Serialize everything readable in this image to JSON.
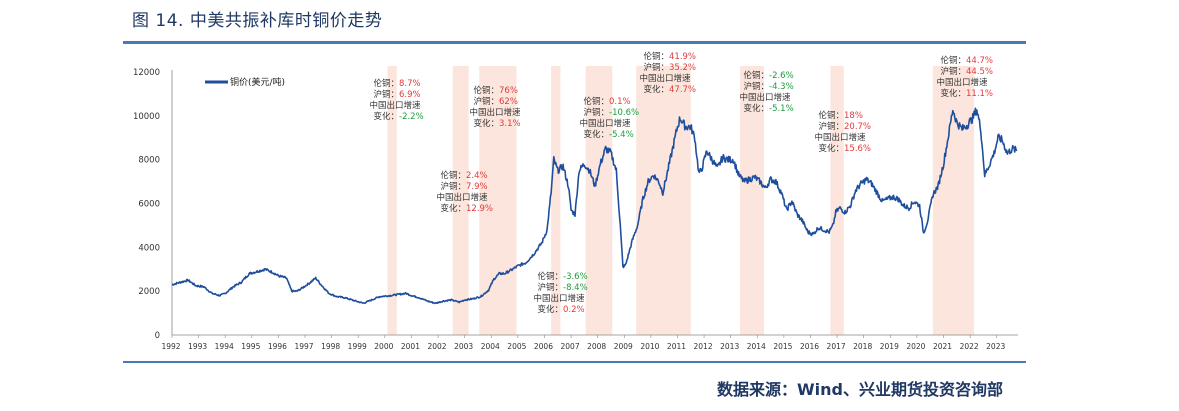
{
  "title": "图 14.  中美共振补库时铜价走势",
  "source": "数据来源：Wind、兴业期货投资咨询部",
  "colors": {
    "line": "#1f4e9c",
    "band": "#fbe5dc",
    "label": "#333333",
    "positive": "#e23a3a",
    "negative": "#1a9d3c",
    "axis": "#888888",
    "rule": "#4a7ab5"
  },
  "chart_data": {
    "type": "line",
    "title": "",
    "legend": "铜价(美元/吨)",
    "legend_position": "top-left",
    "xlabel": "",
    "ylabel": "",
    "xlim": [
      1992.0,
      2023.8
    ],
    "ylim": [
      0,
      12000
    ],
    "yticks": [
      "0",
      "2000",
      "4000",
      "6000",
      "8000",
      "10000",
      "12000"
    ],
    "xticks": [
      "1992",
      "1993",
      "1994",
      "1995",
      "1996",
      "1997",
      "1998",
      "1999",
      "2000",
      "2001",
      "2002",
      "2003",
      "2004",
      "2005",
      "2006",
      "2007",
      "2008",
      "2009",
      "2010",
      "2011",
      "2012",
      "2013",
      "2014",
      "2015",
      "2016",
      "2017",
      "2018",
      "2019",
      "2020",
      "2021",
      "2022",
      "2023"
    ],
    "grid": false,
    "series": [
      {
        "name": "铜价(美元/吨)",
        "points": [
          [
            1992.0,
            2300
          ],
          [
            1992.3,
            2400
          ],
          [
            1992.6,
            2500
          ],
          [
            1992.9,
            2250
          ],
          [
            1993.2,
            2200
          ],
          [
            1993.5,
            1900
          ],
          [
            1993.8,
            1800
          ],
          [
            1994.0,
            1900
          ],
          [
            1994.3,
            2200
          ],
          [
            1994.6,
            2400
          ],
          [
            1994.9,
            2800
          ],
          [
            1995.2,
            2900
          ],
          [
            1995.5,
            3000
          ],
          [
            1995.8,
            2850
          ],
          [
            1996.0,
            2700
          ],
          [
            1996.3,
            2600
          ],
          [
            1996.5,
            2000
          ],
          [
            1996.7,
            2000
          ],
          [
            1996.9,
            2150
          ],
          [
            1997.2,
            2400
          ],
          [
            1997.4,
            2600
          ],
          [
            1997.6,
            2300
          ],
          [
            1997.9,
            1900
          ],
          [
            1998.2,
            1750
          ],
          [
            1998.5,
            1700
          ],
          [
            1998.9,
            1550
          ],
          [
            1999.2,
            1450
          ],
          [
            1999.5,
            1600
          ],
          [
            1999.8,
            1750
          ],
          [
            2000.2,
            1800
          ],
          [
            2000.5,
            1850
          ],
          [
            2000.8,
            1900
          ],
          [
            2001.0,
            1800
          ],
          [
            2001.3,
            1700
          ],
          [
            2001.6,
            1550
          ],
          [
            2001.9,
            1450
          ],
          [
            2002.2,
            1550
          ],
          [
            2002.5,
            1600
          ],
          [
            2002.8,
            1500
          ],
          [
            2003.0,
            1600
          ],
          [
            2003.3,
            1650
          ],
          [
            2003.6,
            1750
          ],
          [
            2003.9,
            2050
          ],
          [
            2004.1,
            2550
          ],
          [
            2004.3,
            2800
          ],
          [
            2004.5,
            2800
          ],
          [
            2004.8,
            3000
          ],
          [
            2005.0,
            3150
          ],
          [
            2005.3,
            3300
          ],
          [
            2005.6,
            3700
          ],
          [
            2005.9,
            4200
          ],
          [
            2006.1,
            4800
          ],
          [
            2006.25,
            6500
          ],
          [
            2006.35,
            8000
          ],
          [
            2006.5,
            7500
          ],
          [
            2006.7,
            7700
          ],
          [
            2006.9,
            6800
          ],
          [
            2007.0,
            5700
          ],
          [
            2007.15,
            5500
          ],
          [
            2007.3,
            7500
          ],
          [
            2007.5,
            7800
          ],
          [
            2007.7,
            7500
          ],
          [
            2007.9,
            6800
          ],
          [
            2008.1,
            7800
          ],
          [
            2008.3,
            8500
          ],
          [
            2008.5,
            8300
          ],
          [
            2008.7,
            7500
          ],
          [
            2008.85,
            5000
          ],
          [
            2008.95,
            3100
          ],
          [
            2009.05,
            3200
          ],
          [
            2009.3,
            4300
          ],
          [
            2009.5,
            5000
          ],
          [
            2009.7,
            6200
          ],
          [
            2009.9,
            7000
          ],
          [
            2010.1,
            7300
          ],
          [
            2010.3,
            7000
          ],
          [
            2010.45,
            6500
          ],
          [
            2010.6,
            7300
          ],
          [
            2010.8,
            8400
          ],
          [
            2011.0,
            9500
          ],
          [
            2011.1,
            9900
          ],
          [
            2011.3,
            9500
          ],
          [
            2011.5,
            9500
          ],
          [
            2011.65,
            9000
          ],
          [
            2011.8,
            7400
          ],
          [
            2011.9,
            7500
          ],
          [
            2012.1,
            8400
          ],
          [
            2012.3,
            8000
          ],
          [
            2012.5,
            7600
          ],
          [
            2012.7,
            8100
          ],
          [
            2012.9,
            8000
          ],
          [
            2013.1,
            8000
          ],
          [
            2013.3,
            7300
          ],
          [
            2013.5,
            7000
          ],
          [
            2013.7,
            7100
          ],
          [
            2013.9,
            7200
          ],
          [
            2014.1,
            7000
          ],
          [
            2014.3,
            6700
          ],
          [
            2014.5,
            7100
          ],
          [
            2014.7,
            7000
          ],
          [
            2014.9,
            6500
          ],
          [
            2015.1,
            5700
          ],
          [
            2015.3,
            6100
          ],
          [
            2015.5,
            5500
          ],
          [
            2015.7,
            5200
          ],
          [
            2015.9,
            4700
          ],
          [
            2016.1,
            4600
          ],
          [
            2016.3,
            4900
          ],
          [
            2016.5,
            4800
          ],
          [
            2016.7,
            4700
          ],
          [
            2016.85,
            5000
          ],
          [
            2016.95,
            5600
          ],
          [
            2017.1,
            5800
          ],
          [
            2017.3,
            5600
          ],
          [
            2017.5,
            5900
          ],
          [
            2017.7,
            6600
          ],
          [
            2017.9,
            6900
          ],
          [
            2018.1,
            7100
          ],
          [
            2018.3,
            6900
          ],
          [
            2018.5,
            6500
          ],
          [
            2018.7,
            6100
          ],
          [
            2018.9,
            6200
          ],
          [
            2019.1,
            6300
          ],
          [
            2019.3,
            6200
          ],
          [
            2019.5,
            5900
          ],
          [
            2019.7,
            5800
          ],
          [
            2019.9,
            6100
          ],
          [
            2020.1,
            5900
          ],
          [
            2020.25,
            4650
          ],
          [
            2020.4,
            5200
          ],
          [
            2020.6,
            6400
          ],
          [
            2020.8,
            6800
          ],
          [
            2021.0,
            7800
          ],
          [
            2021.2,
            9200
          ],
          [
            2021.35,
            10300
          ],
          [
            2021.5,
            9700
          ],
          [
            2021.7,
            9400
          ],
          [
            2021.9,
            9600
          ],
          [
            2022.1,
            9900
          ],
          [
            2022.25,
            10300
          ],
          [
            2022.4,
            9400
          ],
          [
            2022.55,
            7300
          ],
          [
            2022.7,
            7700
          ],
          [
            2022.9,
            8300
          ],
          [
            2023.05,
            9000
          ],
          [
            2023.2,
            8900
          ],
          [
            2023.4,
            8300
          ],
          [
            2023.6,
            8500
          ],
          [
            2023.75,
            8400
          ]
        ]
      }
    ],
    "shaded_periods": [
      [
        2000.1,
        2000.45
      ],
      [
        2002.55,
        2003.15
      ],
      [
        2003.55,
        2004.95
      ],
      [
        2006.25,
        2006.6
      ],
      [
        2007.55,
        2008.55
      ],
      [
        2009.45,
        2011.5
      ],
      [
        2013.35,
        2014.25
      ],
      [
        2016.75,
        2017.25
      ],
      [
        2020.6,
        2022.15
      ]
    ],
    "annotations": [
      {
        "lines": [
          {
            "k": "伦铜：",
            "v": "8.7%",
            "s": "pos"
          },
          {
            "k": "沪铜：",
            "v": "6.9%",
            "s": "pos"
          },
          {
            "k": "中国出口增速",
            "v": "",
            "s": ""
          },
          {
            "k": "变化：",
            "v": "-2.2%",
            "s": "neg"
          }
        ]
      },
      {
        "lines": [
          {
            "k": "伦铜：",
            "v": "2.4%",
            "s": "pos"
          },
          {
            "k": "沪铜：",
            "v": "7.9%",
            "s": "pos"
          },
          {
            "k": "中国出口增速",
            "v": "",
            "s": ""
          },
          {
            "k": "变化：",
            "v": "12.9%",
            "s": "pos"
          }
        ]
      },
      {
        "lines": [
          {
            "k": "伦铜：",
            "v": "76%",
            "s": "pos"
          },
          {
            "k": "沪铜：",
            "v": "62%",
            "s": "pos"
          },
          {
            "k": "中国出口增速",
            "v": "",
            "s": ""
          },
          {
            "k": "变化：",
            "v": "3.1%",
            "s": "pos"
          }
        ]
      },
      {
        "lines": [
          {
            "k": "伦铜：",
            "v": "-3.6%",
            "s": "neg"
          },
          {
            "k": "沪铜：",
            "v": "-8.4%",
            "s": "neg"
          },
          {
            "k": "中国出口增速",
            "v": "",
            "s": ""
          },
          {
            "k": "变化：",
            "v": "0.2%",
            "s": "pos"
          }
        ]
      },
      {
        "lines": [
          {
            "k": "伦铜：",
            "v": "0.1%",
            "s": "pos"
          },
          {
            "k": "沪铜：",
            "v": "-10.6%",
            "s": "neg"
          },
          {
            "k": "中国出口增速",
            "v": "",
            "s": ""
          },
          {
            "k": "变化：",
            "v": "-5.4%",
            "s": "neg"
          }
        ]
      },
      {
        "lines": [
          {
            "k": "伦铜：",
            "v": "41.9%",
            "s": "pos"
          },
          {
            "k": "沪铜：",
            "v": "35.2%",
            "s": "pos"
          },
          {
            "k": "中国出口增速",
            "v": "",
            "s": ""
          },
          {
            "k": "变化：",
            "v": "47.7%",
            "s": "pos"
          }
        ]
      },
      {
        "lines": [
          {
            "k": "伦铜：",
            "v": "-2.6%",
            "s": "neg"
          },
          {
            "k": "沪铜：",
            "v": "-4.3%",
            "s": "neg"
          },
          {
            "k": "中国出口增速",
            "v": "",
            "s": ""
          },
          {
            "k": "变化：",
            "v": "-5.1%",
            "s": "neg"
          }
        ]
      },
      {
        "lines": [
          {
            "k": "伦铜：",
            "v": "18%",
            "s": "pos"
          },
          {
            "k": "沪铜：",
            "v": "20.7%",
            "s": "pos"
          },
          {
            "k": "中国出口增速",
            "v": "",
            "s": ""
          },
          {
            "k": "变化：",
            "v": "15.6%",
            "s": "pos"
          }
        ]
      },
      {
        "lines": [
          {
            "k": "伦铜：",
            "v": "44.7%",
            "s": "pos"
          },
          {
            "k": "沪铜：",
            "v": "44.5%",
            "s": "pos"
          },
          {
            "k": "中国出口增速",
            "v": "",
            "s": ""
          },
          {
            "k": "变化：",
            "v": "11.1%",
            "s": "pos"
          }
        ]
      }
    ]
  }
}
